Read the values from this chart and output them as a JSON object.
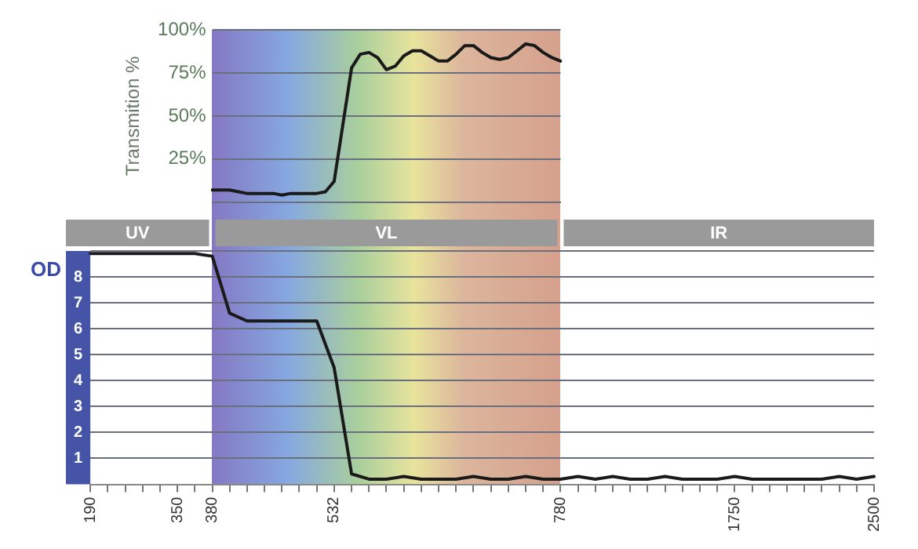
{
  "chart_data": [
    {
      "type": "line",
      "ylabel": "Transmition %",
      "categories": [
        null,
        null,
        null,
        null,
        null,
        null,
        null,
        null,
        null,
        null,
        null,
        null,
        null,
        null,
        null,
        null,
        null,
        null,
        null,
        null,
        null,
        null,
        null,
        null,
        null,
        null,
        null,
        null,
        null,
        null,
        null,
        null,
        null,
        null,
        null,
        null,
        null,
        null,
        null,
        null,
        null
      ],
      "ylim": [
        0,
        100
      ],
      "yticks": [
        {
          "value": 25,
          "label": "25%"
        },
        {
          "value": 50,
          "label": "50%"
        },
        {
          "value": 75,
          "label": "75%"
        },
        {
          "value": 100,
          "label": "100%"
        }
      ],
      "series": [
        {
          "color": "#1a1a1a",
          "values": [
            7,
            7,
            7,
            6,
            5,
            5,
            5,
            5,
            4,
            5,
            5,
            5,
            5,
            6,
            12,
            45,
            78,
            86,
            87,
            84,
            77,
            79,
            85,
            88,
            88,
            85,
            82,
            82,
            86,
            91,
            91,
            87,
            84,
            83,
            84,
            88,
            92,
            91,
            87,
            84,
            82
          ]
        }
      ],
      "grid": "y",
      "tick_labels": "y",
      "legend": false,
      "marker": "none"
    },
    {
      "type": "line",
      "ylabel": "OD",
      "categories": [
        "190",
        null,
        null,
        null,
        null,
        "350",
        null,
        "380",
        null,
        null,
        null,
        null,
        null,
        null,
        "532",
        null,
        null,
        null,
        null,
        null,
        null,
        null,
        null,
        null,
        null,
        null,
        null,
        "780",
        null,
        null,
        null,
        null,
        null,
        null,
        null,
        null,
        null,
        "1750",
        null,
        null,
        null,
        null,
        null,
        null,
        null,
        "2500"
      ],
      "ylim": [
        0,
        9
      ],
      "yticks": [
        1,
        2,
        3,
        4,
        5,
        6,
        7,
        8
      ],
      "series": [
        {
          "color": "#1a1a1a",
          "values": [
            8.9,
            8.9,
            8.9,
            8.9,
            8.9,
            8.9,
            8.9,
            8.8,
            6.6,
            6.3,
            6.3,
            6.3,
            6.3,
            6.3,
            4.5,
            0.4,
            0.2,
            0.2,
            0.3,
            0.2,
            0.2,
            0.2,
            0.3,
            0.2,
            0.2,
            0.3,
            0.2,
            0.2,
            0.3,
            0.2,
            0.3,
            0.2,
            0.2,
            0.3,
            0.2,
            0.2,
            0.2,
            0.3,
            0.2,
            0.2,
            0.2,
            0.2,
            0.2,
            0.3,
            0.2,
            0.3
          ]
        }
      ],
      "bands": [
        {
          "axis": "x",
          "from": "380",
          "to": "780",
          "label": "VL"
        }
      ],
      "annotations": [
        "UV",
        "IR"
      ],
      "grid": "y",
      "legend": false,
      "marker": "none"
    }
  ]
}
